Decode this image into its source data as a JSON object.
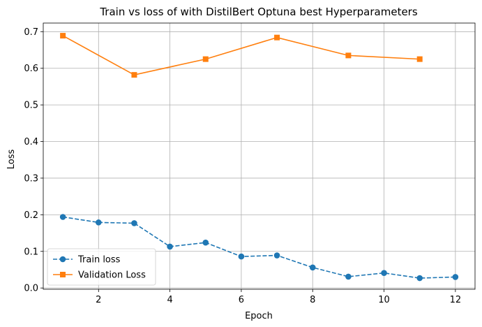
{
  "chart_data": {
    "type": "line",
    "title": "Train vs loss of with DistilBert Optuna best Hyperparameters",
    "xlabel": "Epoch",
    "ylabel": "Loss",
    "xlim": [
      0.45,
      12.55
    ],
    "ylim": [
      -0.0035,
      0.7235
    ],
    "xticks": [
      2,
      4,
      6,
      8,
      10,
      12
    ],
    "yticks": [
      0.0,
      0.1,
      0.2,
      0.3,
      0.4,
      0.5,
      0.6,
      0.7
    ],
    "ytick_labels": [
      "0.0",
      "0.1",
      "0.2",
      "0.3",
      "0.4",
      "0.5",
      "0.6",
      "0.7"
    ],
    "grid": true,
    "legend_position": "lower-left",
    "series": [
      {
        "name": "Train loss",
        "color": "#1f77b4",
        "line_style": "dashed",
        "marker": "circle",
        "x": [
          1,
          2,
          3,
          4,
          5,
          6,
          7,
          8,
          9,
          10,
          11,
          12
        ],
        "y": [
          0.194,
          0.179,
          0.177,
          0.113,
          0.124,
          0.086,
          0.089,
          0.056,
          0.031,
          0.041,
          0.027,
          0.03
        ]
      },
      {
        "name": "Validation Loss",
        "color": "#ff7f0e",
        "line_style": "solid",
        "marker": "square",
        "x": [
          1,
          3,
          5,
          7,
          9,
          11
        ],
        "y": [
          0.689,
          0.582,
          0.625,
          0.684,
          0.635,
          0.625
        ]
      }
    ]
  }
}
